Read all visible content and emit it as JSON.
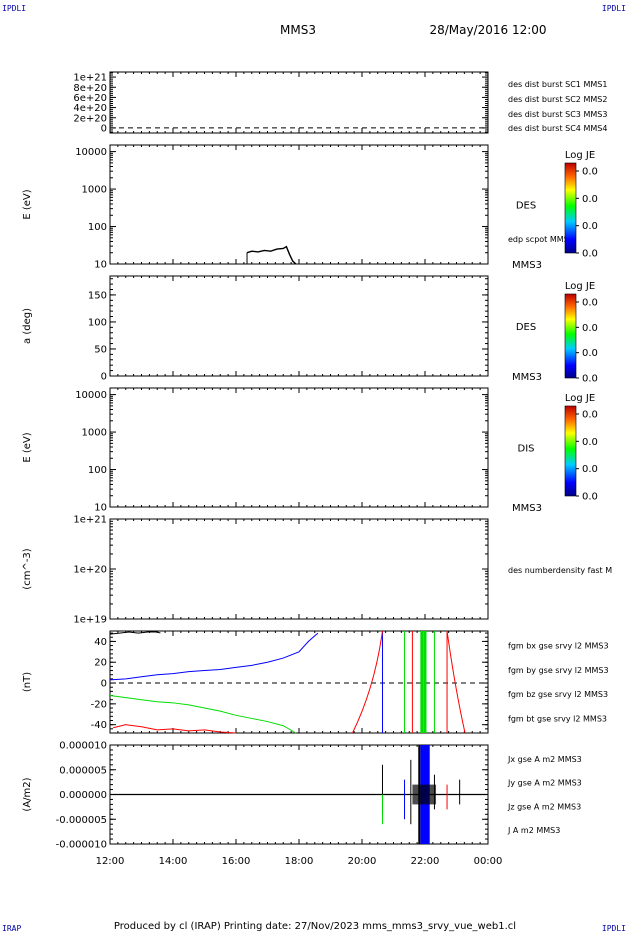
{
  "header": {
    "spacecraft": "MMS3",
    "datetime": "28/May/2016 12:00",
    "corner_tl": "IPDLI",
    "corner_tr": "IPDLI",
    "corner_bl": "IRAP",
    "corner_br": "IPDLI"
  },
  "footer": {
    "text": "Produced by cl (IRAP)   Printing date: 27/Nov/2023   mms_mms3_srvy_vue_web1.cl"
  },
  "time_axis": {
    "ticks": [
      "12:00",
      "14:00",
      "16:00",
      "18:00",
      "20:00",
      "22:00",
      "00:00"
    ],
    "hours": [
      12,
      14,
      16,
      18,
      20,
      22,
      24
    ],
    "range_hours": [
      12,
      24
    ]
  },
  "colors": {
    "red": "#ff0000",
    "green": "#00dd00",
    "blue": "#0000ff",
    "magenta": "#ff00ff",
    "darkblue": "#0000aa",
    "black": "#000000"
  },
  "chart_data": [
    {
      "type": "line",
      "panel": "des-dist-burst",
      "ylabel": "",
      "yticks": [
        "1e+21",
        "8e+20",
        "6e+20",
        "4e+20",
        "2e+20",
        "0"
      ],
      "ytick_values": [
        1e+21,
        8e+20,
        6e+20,
        4e+20,
        2e+20,
        0
      ],
      "ylim": [
        -1e+20,
        1.1e+21
      ],
      "zero_dashed": true,
      "legend": [
        {
          "label": "des dist burst SC1 MMS1",
          "color": "#0000ff"
        },
        {
          "label": "des dist burst SC2 MMS2",
          "color": "#ff00ff"
        },
        {
          "label": "des dist burst SC3 MMS3",
          "color": "#ff0000"
        },
        {
          "label": "des dist burst SC4 MMS4",
          "color": "#00dd00"
        }
      ]
    },
    {
      "type": "heatmap",
      "panel": "des-energy",
      "ylabel": "E (eV)",
      "scale": "log",
      "yticks": [
        "10000",
        "1000",
        "100",
        "10"
      ],
      "ytick_values": [
        10000,
        1000,
        100,
        10
      ],
      "ylim": [
        10,
        15000
      ],
      "side_label": "DES",
      "instrument": "MMS3",
      "trace_label": "edp scpot MMS3",
      "colorbar_title": "Log JE",
      "colorbar_ticks": [
        "0.0",
        "0.0",
        "0.0",
        "0.0"
      ],
      "scpot_trace": {
        "x": [
          16.35,
          16.5,
          16.7,
          16.9,
          17.1,
          17.3,
          17.5,
          17.6,
          17.7,
          17.8,
          17.9
        ],
        "y": [
          20,
          22,
          21,
          23,
          22,
          25,
          26,
          29,
          18,
          12,
          10
        ]
      }
    },
    {
      "type": "heatmap",
      "panel": "des-pitch",
      "ylabel": "a (deg)",
      "yticks": [
        "150",
        "100",
        "50",
        "0"
      ],
      "ytick_values": [
        150,
        100,
        50,
        0
      ],
      "ylim": [
        0,
        185
      ],
      "side_label": "DES",
      "instrument": "MMS3",
      "colorbar_title": "Log JE",
      "colorbar_ticks": [
        "0.0",
        "0.0",
        "0.0",
        "0.0"
      ]
    },
    {
      "type": "heatmap",
      "panel": "dis-energy",
      "ylabel": "E (eV)",
      "scale": "log",
      "yticks": [
        "10000",
        "1000",
        "100",
        "10"
      ],
      "ytick_values": [
        10000,
        1000,
        100,
        10
      ],
      "ylim": [
        10,
        15000
      ],
      "side_label": "DIS",
      "instrument": "MMS3",
      "colorbar_title": "Log JE",
      "colorbar_ticks": [
        "0.0",
        "0.0",
        "0.0",
        "0.0"
      ]
    },
    {
      "type": "line",
      "panel": "density",
      "ylabel": "(cm^-3)",
      "scale": "log",
      "yticks": [
        "1e+21",
        "1e+20",
        "1e+19"
      ],
      "ytick_values": [
        1e+21,
        1e+20,
        1e+19
      ],
      "ylim": [
        1e+19,
        1e+21
      ],
      "legend": [
        {
          "label": "des numberdensity fast M",
          "color": "#000000"
        }
      ]
    },
    {
      "type": "line",
      "panel": "fgm",
      "ylabel": "(nT)",
      "yticks": [
        "40",
        "20",
        "0",
        "-20",
        "-40"
      ],
      "ytick_values": [
        40,
        20,
        0,
        -20,
        -40
      ],
      "ylim": [
        -48,
        50
      ],
      "zero_dashed": true,
      "legend": [
        {
          "label": "fgm bx gse srvy l2 MMS3",
          "color": "#ff0000"
        },
        {
          "label": "fgm by gse srvy l2 MMS3",
          "color": "#00dd00"
        },
        {
          "label": "fgm bz gse srvy l2 MMS3",
          "color": "#0000ff"
        },
        {
          "label": "fgm bt gse srvy l2 MMS3",
          "color": "#000000"
        }
      ],
      "series": [
        {
          "name": "fgm bx gse srvy l2 MMS3",
          "color": "#ff0000",
          "x": [
            12.1,
            12.5,
            13.0,
            13.5,
            14.0,
            14.5,
            15.0,
            15.5,
            16.0
          ],
          "y": [
            -43,
            -40,
            -42,
            -45,
            -44,
            -46,
            -45,
            -47,
            -48
          ]
        },
        {
          "name": "fgm by gse srvy l2 MMS3",
          "color": "#00dd00",
          "x": [
            12.0,
            12.5,
            13.0,
            13.5,
            14.0,
            14.5,
            15.0,
            15.5,
            16.0,
            16.5,
            17.0,
            17.5,
            17.9
          ],
          "y": [
            -12,
            -14,
            -16,
            -18,
            -19,
            -21,
            -24,
            -27,
            -31,
            -34,
            -37,
            -41,
            -48
          ]
        },
        {
          "name": "fgm bz gse srvy l2 MMS3",
          "color": "#0000ff",
          "x": [
            12.0,
            12.5,
            13.0,
            13.5,
            14.0,
            14.5,
            15.0,
            15.5,
            16.0,
            16.5,
            17.0,
            17.5,
            18.0,
            18.3,
            18.6
          ],
          "y": [
            3,
            4,
            6,
            8,
            9,
            11,
            12,
            13,
            15,
            17,
            20,
            24,
            30,
            40,
            48
          ]
        },
        {
          "name": "fgm bt gse srvy l2 MMS3",
          "color": "#000000",
          "x": [
            12.0,
            12.3,
            12.6,
            12.9,
            13.2,
            13.5,
            13.6
          ],
          "y": [
            47,
            48,
            49,
            48,
            49,
            49,
            48
          ]
        }
      ],
      "spikes": [
        {
          "x": 20.65,
          "color": "#0000ff"
        },
        {
          "x": 21.35,
          "color": "#00dd00"
        },
        {
          "x": 21.6,
          "color": "#ff0000"
        },
        {
          "x": 21.9,
          "color": "#00dd00"
        },
        {
          "x": 22.0,
          "color": "#00dd00"
        },
        {
          "x": 22.3,
          "color": "#00dd00"
        },
        {
          "x": 22.7,
          "color": "#ff0000"
        }
      ]
    },
    {
      "type": "line",
      "panel": "current",
      "ylabel": "(A/m2)",
      "yticks": [
        "0.000010",
        "0.000005",
        "0.000000",
        "-0.000005",
        "-0.000010"
      ],
      "ytick_values": [
        1e-05,
        5e-06,
        0,
        -5e-06,
        -1e-05
      ],
      "ylim": [
        -1e-05,
        1e-05
      ],
      "legend": [
        {
          "label": "Jx gse A m2 MMS3",
          "color": "#ff0000"
        },
        {
          "label": "Jy gse A m2 MMS3",
          "color": "#00dd00"
        },
        {
          "label": "Jz gse A m2 MMS3",
          "color": "#0000ff"
        },
        {
          "label": "J A m2 MMS3",
          "color": "#000000"
        }
      ]
    }
  ]
}
